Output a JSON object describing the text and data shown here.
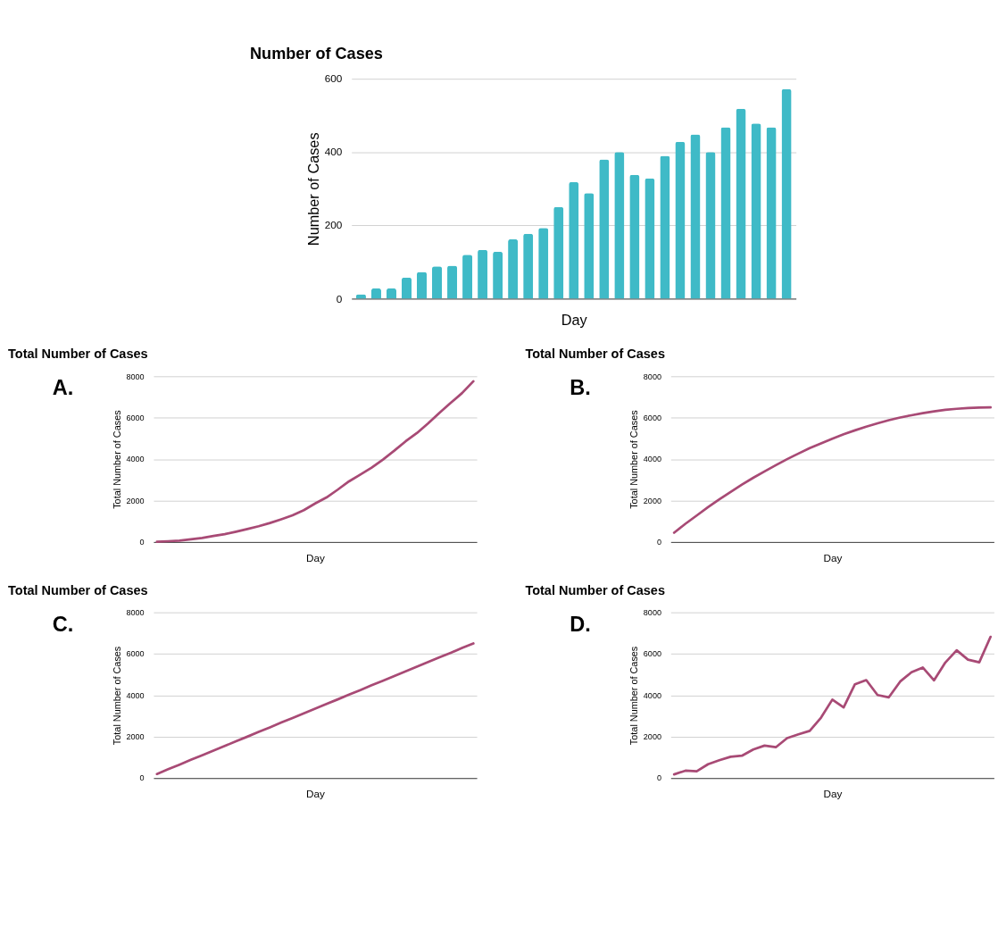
{
  "chart_data": [
    {
      "type": "bar",
      "title": "Number of Cases",
      "xlabel": "Day",
      "ylabel": "Number of Cases",
      "categories": [
        null,
        null,
        null,
        null,
        null,
        null,
        null,
        null,
        null,
        null,
        null,
        null,
        null,
        null,
        null,
        null,
        null,
        null,
        null,
        null,
        null,
        null,
        null,
        null,
        null,
        null,
        null,
        null,
        null
      ],
      "series": [
        {
          "color": "#3fbac7",
          "values": [
            12,
            28,
            28,
            58,
            73,
            88,
            90,
            120,
            133,
            128,
            162,
            177,
            193,
            250,
            318,
            288,
            380,
            400,
            338,
            328,
            390,
            428,
            448,
            400,
            468,
            518,
            478,
            468,
            572
          ]
        }
      ],
      "ylim": [
        0,
        600
      ],
      "yticks": [
        0,
        200,
        400,
        600
      ],
      "grid": "y",
      "tick_labels": "y"
    },
    {
      "type": "line",
      "title": "Total Number of Cases",
      "xlabel": "Day",
      "ylabel": "Total Number of Cases",
      "annotations": [
        "A."
      ],
      "categories": [
        null,
        null,
        null,
        null,
        null,
        null,
        null,
        null,
        null,
        null,
        null,
        null,
        null,
        null,
        null,
        null,
        null,
        null,
        null,
        null,
        null,
        null,
        null,
        null,
        null,
        null,
        null,
        null,
        null
      ],
      "series": [
        {
          "color": "#a84a75",
          "values": [
            10,
            40,
            70,
            130,
            200,
            290,
            380,
            500,
            630,
            760,
            920,
            1100,
            1290,
            1540,
            1860,
            2150,
            2530,
            2930,
            3260,
            3590,
            3980,
            4410,
            4860,
            5260,
            5730,
            6240,
            6720,
            7190,
            7760
          ]
        }
      ],
      "ylim": [
        0,
        8000
      ],
      "yticks": [
        0,
        2000,
        4000,
        6000,
        8000
      ],
      "grid": "y",
      "tick_labels": "y"
    },
    {
      "type": "line",
      "title": "Total Number of Cases",
      "xlabel": "Day",
      "ylabel": "Total Number of Cases",
      "annotations": [
        "B."
      ],
      "categories": [
        null,
        null,
        null,
        null,
        null,
        null,
        null,
        null,
        null,
        null,
        null,
        null,
        null,
        null,
        null,
        null,
        null,
        null,
        null,
        null,
        null,
        null,
        null,
        null,
        null,
        null,
        null,
        null,
        null
      ],
      "series": [
        {
          "color": "#a84a75",
          "values": [
            450,
            880,
            1280,
            1680,
            2060,
            2420,
            2770,
            3100,
            3410,
            3710,
            4000,
            4270,
            4530,
            4760,
            4990,
            5200,
            5390,
            5570,
            5730,
            5880,
            6010,
            6120,
            6220,
            6310,
            6380,
            6430,
            6470,
            6490,
            6500
          ]
        }
      ],
      "ylim": [
        0,
        8000
      ],
      "yticks": [
        0,
        2000,
        4000,
        6000,
        8000
      ],
      "grid": "y",
      "tick_labels": "y"
    },
    {
      "type": "line",
      "title": "Total Number of Cases",
      "xlabel": "Day",
      "ylabel": "Total Number of Cases",
      "annotations": [
        "C."
      ],
      "categories": [
        null,
        null,
        null,
        null,
        null,
        null,
        null,
        null,
        null,
        null,
        null,
        null,
        null,
        null,
        null,
        null,
        null,
        null,
        null,
        null,
        null,
        null,
        null,
        null,
        null,
        null,
        null,
        null,
        null
      ],
      "series": [
        {
          "color": "#a84a75",
          "values": [
            200,
            430,
            650,
            880,
            1100,
            1330,
            1550,
            1780,
            2000,
            2230,
            2450,
            2680,
            2900,
            3130,
            3350,
            3580,
            3800,
            4030,
            4250,
            4480,
            4700,
            4930,
            5150,
            5380,
            5600,
            5830,
            6050,
            6280,
            6500
          ]
        }
      ],
      "ylim": [
        0,
        8000
      ],
      "yticks": [
        0,
        2000,
        4000,
        6000,
        8000
      ],
      "grid": "y",
      "tick_labels": "y"
    },
    {
      "type": "line",
      "title": "Total Number of Cases",
      "xlabel": "Day",
      "ylabel": "Total Number of Cases",
      "annotations": [
        "D."
      ],
      "categories": [
        null,
        null,
        null,
        null,
        null,
        null,
        null,
        null,
        null,
        null,
        null,
        null,
        null,
        null,
        null,
        null,
        null,
        null,
        null,
        null,
        null,
        null,
        null,
        null,
        null,
        null,
        null,
        null,
        null
      ],
      "series": [
        {
          "color": "#a84a75",
          "values": [
            180,
            360,
            330,
            670,
            860,
            1030,
            1080,
            1380,
            1570,
            1490,
            1930,
            2110,
            2280,
            2920,
            3790,
            3410,
            4530,
            4730,
            4010,
            3900,
            4660,
            5110,
            5340,
            4720,
            5580,
            6170,
            5720,
            5590,
            6820
          ]
        }
      ],
      "ylim": [
        0,
        8000
      ],
      "yticks": [
        0,
        2000,
        4000,
        6000,
        8000
      ],
      "grid": "y",
      "tick_labels": "y"
    }
  ]
}
